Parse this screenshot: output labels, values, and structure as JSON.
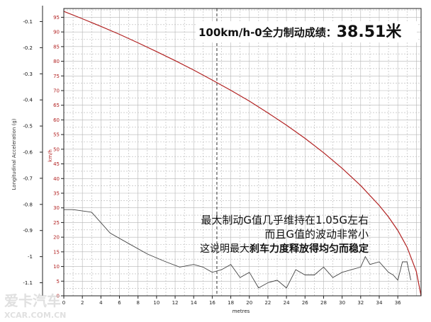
{
  "chart_data": {
    "type": "line",
    "title": "100km/h-0全力制动成绩：",
    "title_value": "38.51米",
    "xlabel": "metres",
    "y_left_label": "Longitudinal Acceleration (g)",
    "y_right_label": "km/h",
    "x_ticks": [
      "0",
      "2",
      "4",
      "6",
      "8",
      "10",
      "12",
      "14",
      "16",
      "18",
      "20",
      "22",
      "24",
      "26",
      "28",
      "30",
      "32",
      "34",
      "36"
    ],
    "y_left_ticks": [
      "-0.1",
      "-0.2",
      "-0.3",
      "-0.4",
      "-0.5",
      "-0.6",
      "-0.7",
      "-0.8",
      "-0.9",
      "-1",
      "-1.1"
    ],
    "y_right_ticks": [
      "95",
      "90",
      "85",
      "80",
      "75",
      "70",
      "65",
      "60",
      "55",
      "50",
      "45",
      "40",
      "35",
      "30",
      "25",
      "20",
      "15",
      "10",
      "5",
      "0"
    ],
    "xlim": [
      0,
      38.51
    ],
    "y_left_lim": [
      -0.05,
      -1.15
    ],
    "y_right_lim": [
      0,
      98
    ],
    "cursor_x": 16.5,
    "grid": true,
    "series": [
      {
        "axis": "right",
        "color": "#b22222",
        "x": [
          0,
          2,
          4,
          6,
          8,
          10,
          12,
          14,
          16,
          18,
          20,
          22,
          24,
          26,
          28,
          30,
          32,
          34,
          35,
          36,
          37,
          38,
          38.51
        ],
        "values": [
          97,
          94.5,
          91.9,
          89.2,
          86.3,
          83.3,
          80.2,
          77,
          73.6,
          70.1,
          66.4,
          62.4,
          58.2,
          53.7,
          48.8,
          43.5,
          37.6,
          30.8,
          26.9,
          22.3,
          16.6,
          8.3,
          0
        ]
      },
      {
        "axis": "left",
        "color": "#444444",
        "x": [
          0,
          1,
          3,
          5,
          7,
          9,
          11,
          12.5,
          14,
          15,
          16,
          17,
          18,
          19,
          20,
          21,
          22,
          23,
          24,
          25,
          26,
          27,
          28,
          29,
          30,
          31,
          32,
          32.5,
          33,
          34,
          35,
          35.5,
          36,
          36.5,
          37,
          37.4
        ],
        "values": [
          -0.82,
          -0.82,
          -0.83,
          -0.91,
          -0.95,
          -0.99,
          -1.02,
          -1.04,
          -1.03,
          -1.04,
          -1.06,
          -1.05,
          -1.03,
          -1.08,
          -1.06,
          -1.12,
          -1.1,
          -1.09,
          -1.12,
          -1.05,
          -1.07,
          -1.07,
          -1.04,
          -1.08,
          -1.06,
          -1.05,
          -1.04,
          -1.0,
          -1.03,
          -1.02,
          -1.06,
          -1.07,
          -1.09,
          -1.02,
          -1.02,
          -1.09
        ]
      }
    ],
    "annotations": [
      "最大制动G值几乎维持在1.05G左右",
      "而且G值的波动非常小"
    ],
    "annotation_bold": {
      "prefix": "这说明最大",
      "bold": "刹车力度释放得均匀而稳定"
    }
  },
  "watermark": {
    "main": "爱卡汽车",
    "sub": "XCAR.COM.CN"
  },
  "colors": {
    "axis_left_text": "#111111",
    "axis_right_text": "#b22222",
    "grid": "#b5b5b5",
    "frame": "#222222"
  }
}
